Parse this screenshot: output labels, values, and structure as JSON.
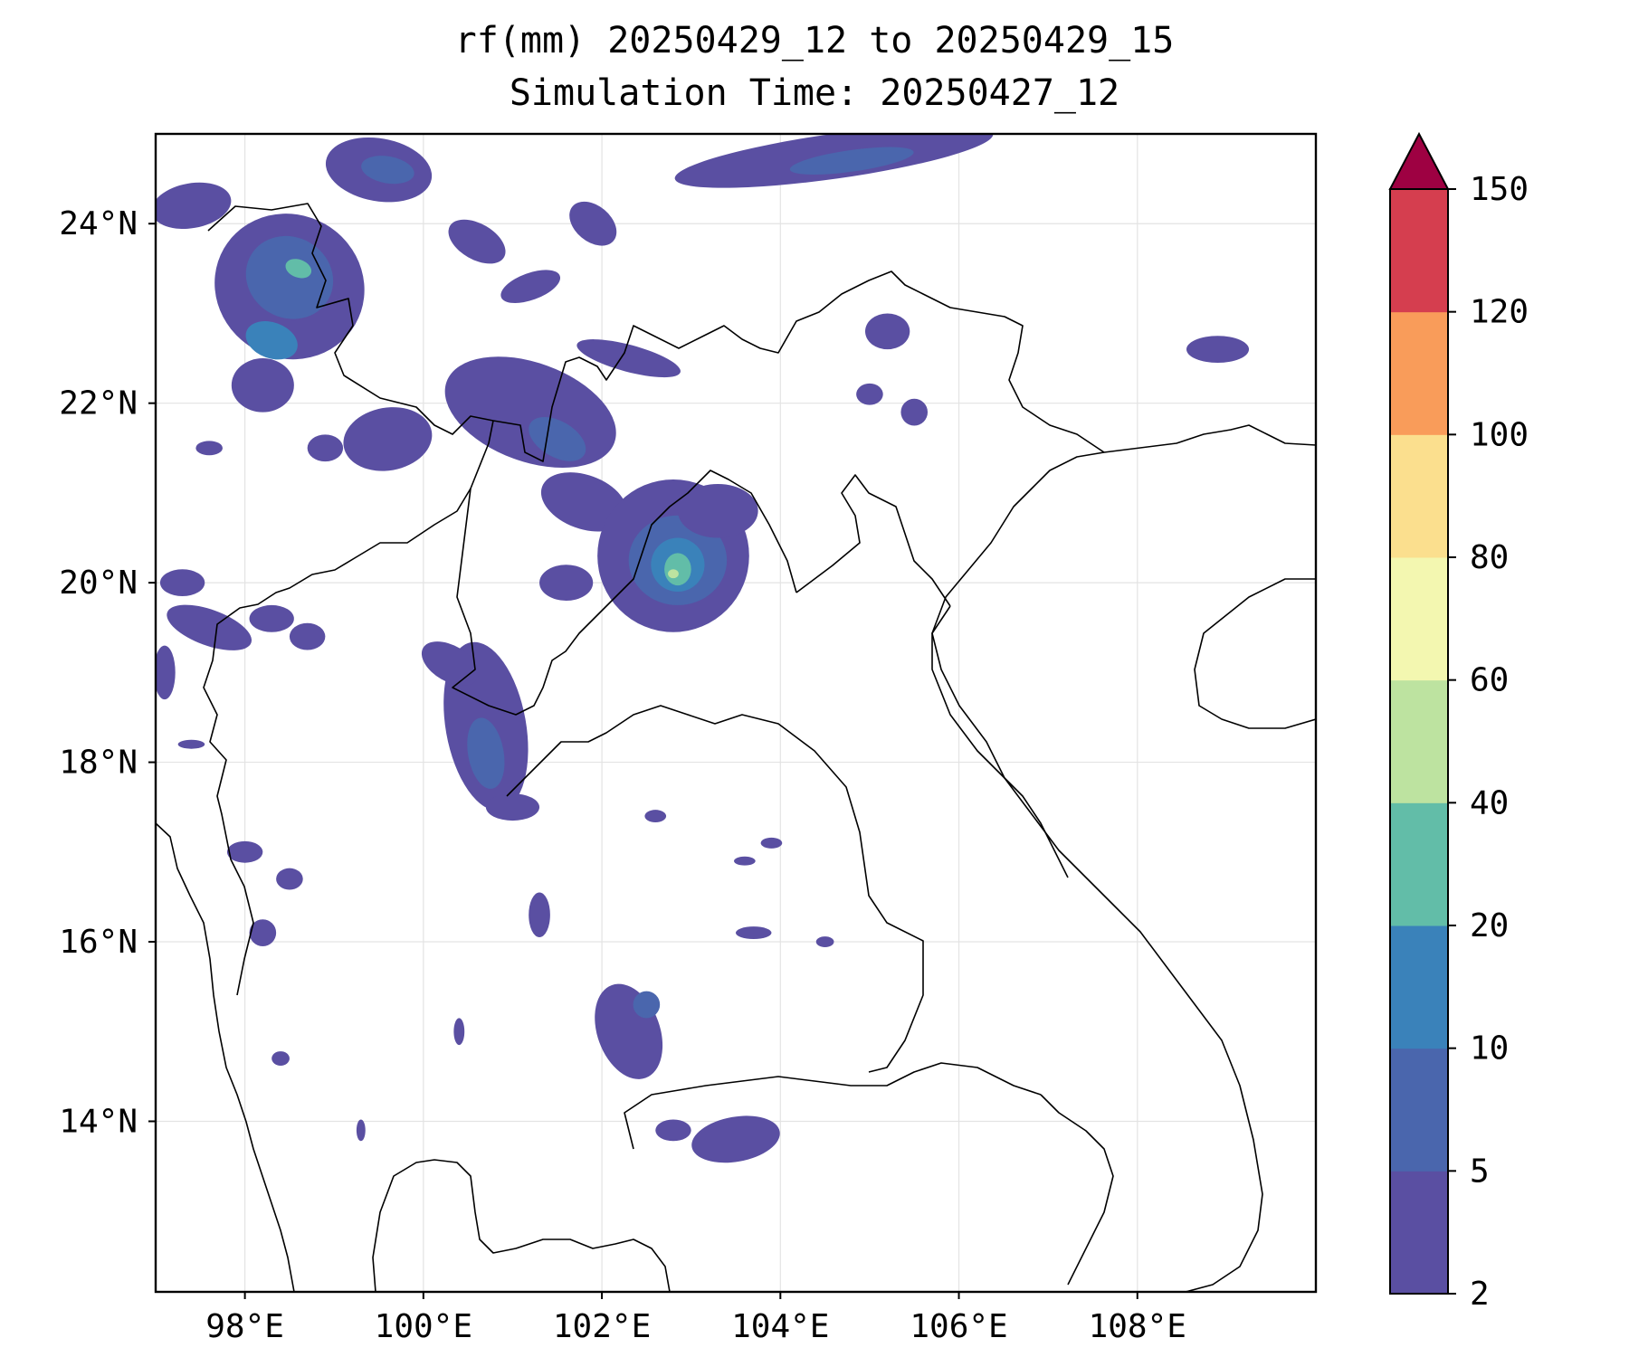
{
  "map": {
    "title_line1": "rf(mm) 20250429_12 to 20250429_15",
    "title_line2": "Simulation Time: 20250427_12",
    "extent": {
      "lon": [
        97.0,
        110.0
      ],
      "lat": [
        12.1,
        25.0
      ]
    },
    "lon_ticks": [
      {
        "value": 98,
        "label": "98°E"
      },
      {
        "value": 100,
        "label": "100°E"
      },
      {
        "value": 102,
        "label": "102°E"
      },
      {
        "value": 104,
        "label": "104°E"
      },
      {
        "value": 106,
        "label": "106°E"
      },
      {
        "value": 108,
        "label": "108°E"
      }
    ],
    "lat_ticks": [
      {
        "value": 14,
        "label": "14°N"
      },
      {
        "value": 16,
        "label": "16°N"
      },
      {
        "value": 18,
        "label": "18°N"
      },
      {
        "value": 20,
        "label": "20°N"
      },
      {
        "value": 22,
        "label": "22°N"
      },
      {
        "value": 24,
        "label": "24°N"
      }
    ],
    "gridlines": true
  },
  "colorbar": {
    "levels": [
      2,
      5,
      10,
      20,
      40,
      60,
      80,
      100,
      120,
      150
    ],
    "labels": [
      "2",
      "5",
      "10",
      "20",
      "40",
      "60",
      "80",
      "100",
      "120",
      "150"
    ],
    "colors": [
      "#5a4fa2",
      "#4a66ad",
      "#3a82ba",
      "#62bda8",
      "#bde3a0",
      "#f3f7b0",
      "#fbdf8e",
      "#f99c5a",
      "#d53e4f"
    ],
    "extend_color": "#9e0142",
    "extend": "max"
  },
  "rain_areas": [
    {
      "lon": 98.5,
      "lat": 23.3,
      "rx": 0.85,
      "ry": 0.8,
      "level": 0,
      "rot": 30
    },
    {
      "lon": 98.5,
      "lat": 23.4,
      "rx": 0.5,
      "ry": 0.45,
      "level": 1,
      "rot": 30
    },
    {
      "lon": 98.3,
      "lat": 22.7,
      "rx": 0.3,
      "ry": 0.2,
      "level": 2,
      "rot": 20
    },
    {
      "lon": 98.6,
      "lat": 23.5,
      "rx": 0.15,
      "ry": 0.1,
      "level": 3,
      "rot": 20
    },
    {
      "lon": 98.2,
      "lat": 22.2,
      "rx": 0.35,
      "ry": 0.3,
      "level": 0,
      "rot": 0
    },
    {
      "lon": 97.4,
      "lat": 24.2,
      "rx": 0.45,
      "ry": 0.25,
      "level": 0,
      "rot": -10
    },
    {
      "lon": 99.5,
      "lat": 24.6,
      "rx": 0.6,
      "ry": 0.35,
      "level": 0,
      "rot": 10
    },
    {
      "lon": 99.6,
      "lat": 24.6,
      "rx": 0.3,
      "ry": 0.15,
      "level": 1,
      "rot": 10
    },
    {
      "lon": 104.6,
      "lat": 24.75,
      "rx": 1.8,
      "ry": 0.25,
      "level": 0,
      "rot": -8
    },
    {
      "lon": 104.8,
      "lat": 24.7,
      "rx": 0.7,
      "ry": 0.12,
      "level": 1,
      "rot": -8
    },
    {
      "lon": 100.6,
      "lat": 23.8,
      "rx": 0.35,
      "ry": 0.2,
      "level": 0,
      "rot": 30
    },
    {
      "lon": 101.9,
      "lat": 24.0,
      "rx": 0.3,
      "ry": 0.2,
      "level": 0,
      "rot": 40
    },
    {
      "lon": 101.2,
      "lat": 23.3,
      "rx": 0.35,
      "ry": 0.15,
      "level": 0,
      "rot": -20
    },
    {
      "lon": 99.6,
      "lat": 21.6,
      "rx": 0.5,
      "ry": 0.35,
      "level": 0,
      "rot": -10
    },
    {
      "lon": 101.2,
      "lat": 21.9,
      "rx": 1.0,
      "ry": 0.55,
      "level": 0,
      "rot": 20
    },
    {
      "lon": 101.5,
      "lat": 21.6,
      "rx": 0.35,
      "ry": 0.2,
      "level": 1,
      "rot": 30
    },
    {
      "lon": 102.3,
      "lat": 22.5,
      "rx": 0.6,
      "ry": 0.15,
      "level": 0,
      "rot": 15
    },
    {
      "lon": 101.8,
      "lat": 20.9,
      "rx": 0.5,
      "ry": 0.3,
      "level": 0,
      "rot": 20
    },
    {
      "lon": 101.6,
      "lat": 20.0,
      "rx": 0.3,
      "ry": 0.2,
      "level": 0,
      "rot": 0
    },
    {
      "lon": 102.8,
      "lat": 20.3,
      "rx": 0.85,
      "ry": 0.85,
      "level": 0,
      "rot": 0
    },
    {
      "lon": 102.85,
      "lat": 20.25,
      "rx": 0.55,
      "ry": 0.5,
      "level": 1,
      "rot": 0
    },
    {
      "lon": 102.85,
      "lat": 20.2,
      "rx": 0.3,
      "ry": 0.3,
      "level": 2,
      "rot": 0
    },
    {
      "lon": 102.85,
      "lat": 20.15,
      "rx": 0.15,
      "ry": 0.18,
      "level": 3,
      "rot": 0
    },
    {
      "lon": 102.8,
      "lat": 20.1,
      "rx": 0.06,
      "ry": 0.05,
      "level": 4,
      "rot": 0
    },
    {
      "lon": 103.3,
      "lat": 20.8,
      "rx": 0.45,
      "ry": 0.3,
      "level": 0,
      "rot": 0
    },
    {
      "lon": 100.7,
      "lat": 18.4,
      "rx": 0.45,
      "ry": 0.95,
      "level": 0,
      "rot": -10
    },
    {
      "lon": 100.7,
      "lat": 18.1,
      "rx": 0.2,
      "ry": 0.4,
      "level": 1,
      "rot": -10
    },
    {
      "lon": 101.0,
      "lat": 17.5,
      "rx": 0.3,
      "ry": 0.15,
      "level": 0,
      "rot": 0
    },
    {
      "lon": 100.3,
      "lat": 19.1,
      "rx": 0.35,
      "ry": 0.2,
      "level": 0,
      "rot": 30
    },
    {
      "lon": 97.6,
      "lat": 19.5,
      "rx": 0.5,
      "ry": 0.2,
      "level": 0,
      "rot": 20
    },
    {
      "lon": 97.3,
      "lat": 20.0,
      "rx": 0.25,
      "ry": 0.15,
      "level": 0,
      "rot": 0
    },
    {
      "lon": 97.1,
      "lat": 19.0,
      "rx": 0.12,
      "ry": 0.3,
      "level": 0,
      "rot": 0
    },
    {
      "lon": 98.3,
      "lat": 19.6,
      "rx": 0.25,
      "ry": 0.15,
      "level": 0,
      "rot": 0
    },
    {
      "lon": 98.7,
      "lat": 19.4,
      "rx": 0.2,
      "ry": 0.15,
      "level": 0,
      "rot": 0
    },
    {
      "lon": 105.2,
      "lat": 22.8,
      "rx": 0.25,
      "ry": 0.2,
      "level": 0,
      "rot": 0
    },
    {
      "lon": 105.0,
      "lat": 22.1,
      "rx": 0.15,
      "ry": 0.12,
      "level": 0,
      "rot": 0
    },
    {
      "lon": 105.5,
      "lat": 21.9,
      "rx": 0.15,
      "ry": 0.15,
      "level": 0,
      "rot": 0
    },
    {
      "lon": 108.9,
      "lat": 22.6,
      "rx": 0.35,
      "ry": 0.15,
      "level": 0,
      "rot": 0
    },
    {
      "lon": 102.3,
      "lat": 15.0,
      "rx": 0.35,
      "ry": 0.55,
      "level": 0,
      "rot": -20
    },
    {
      "lon": 102.5,
      "lat": 15.3,
      "rx": 0.15,
      "ry": 0.15,
      "level": 1,
      "rot": 0
    },
    {
      "lon": 103.5,
      "lat": 13.8,
      "rx": 0.5,
      "ry": 0.25,
      "level": 0,
      "rot": -10
    },
    {
      "lon": 102.8,
      "lat": 13.9,
      "rx": 0.2,
      "ry": 0.12,
      "level": 0,
      "rot": 0
    },
    {
      "lon": 101.3,
      "lat": 16.3,
      "rx": 0.12,
      "ry": 0.25,
      "level": 0,
      "rot": 0
    },
    {
      "lon": 98.2,
      "lat": 16.1,
      "rx": 0.15,
      "ry": 0.15,
      "level": 0,
      "rot": 0
    },
    {
      "lon": 98.5,
      "lat": 16.7,
      "rx": 0.15,
      "ry": 0.12,
      "level": 0,
      "rot": 0
    },
    {
      "lon": 98.0,
      "lat": 17.0,
      "rx": 0.2,
      "ry": 0.12,
      "level": 0,
      "rot": 0
    },
    {
      "lon": 103.9,
      "lat": 17.1,
      "rx": 0.12,
      "ry": 0.06,
      "level": 0,
      "rot": 0
    },
    {
      "lon": 103.6,
      "lat": 16.9,
      "rx": 0.12,
      "ry": 0.05,
      "level": 0,
      "rot": 0
    },
    {
      "lon": 103.7,
      "lat": 16.1,
      "rx": 0.2,
      "ry": 0.07,
      "level": 0,
      "rot": 0
    },
    {
      "lon": 104.5,
      "lat": 16.0,
      "rx": 0.1,
      "ry": 0.06,
      "level": 0,
      "rot": 0
    },
    {
      "lon": 102.6,
      "lat": 17.4,
      "rx": 0.12,
      "ry": 0.07,
      "level": 0,
      "rot": 0
    },
    {
      "lon": 98.9,
      "lat": 21.5,
      "rx": 0.2,
      "ry": 0.15,
      "level": 0,
      "rot": 0
    },
    {
      "lon": 97.6,
      "lat": 21.5,
      "rx": 0.15,
      "ry": 0.08,
      "level": 0,
      "rot": 0
    },
    {
      "lon": 100.4,
      "lat": 15.0,
      "rx": 0.06,
      "ry": 0.15,
      "level": 0,
      "rot": 0
    },
    {
      "lon": 99.3,
      "lat": 13.9,
      "rx": 0.05,
      "ry": 0.12,
      "level": 0,
      "rot": 0
    },
    {
      "lon": 97.4,
      "lat": 18.2,
      "rx": 0.15,
      "ry": 0.05,
      "level": 0,
      "rot": 0
    },
    {
      "lon": 98.4,
      "lat": 14.7,
      "rx": 0.1,
      "ry": 0.08,
      "level": 0,
      "rot": 0
    }
  ]
}
